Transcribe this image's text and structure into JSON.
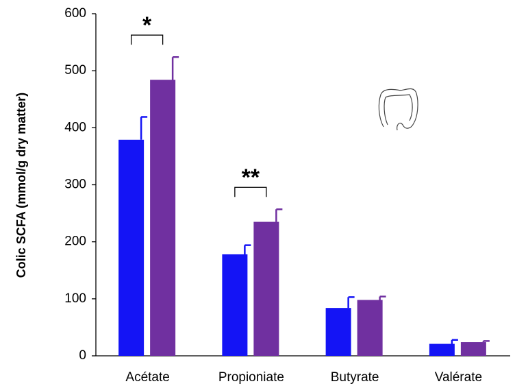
{
  "chart_data": {
    "type": "bar",
    "y_label": "Colic SCFA (mmol/g dry matter)",
    "categories": [
      "Acétate",
      "Propioniate",
      "Butyrate",
      "Valérate"
    ],
    "series": [
      {
        "color": "#1414f5",
        "values": [
          379,
          178,
          84,
          21
        ],
        "errors": [
          40,
          16,
          19,
          7
        ]
      },
      {
        "color": "#7030a0",
        "values": [
          484,
          235,
          98,
          24
        ],
        "errors": [
          40,
          22,
          6,
          2
        ]
      }
    ],
    "annotations": [
      "*",
      "**"
    ],
    "ylim": [
      0,
      600
    ],
    "yticks": [
      0,
      100,
      200,
      300,
      400,
      500,
      600
    ]
  }
}
